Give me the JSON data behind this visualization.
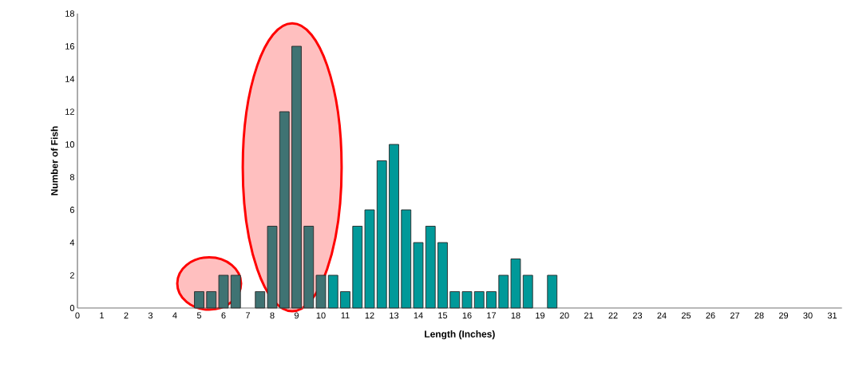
{
  "chart_data": {
    "type": "bar",
    "xlabel": "Length (Inches)",
    "ylabel": "Number of Fish",
    "x": [
      5,
      5.5,
      6,
      6.5,
      7.5,
      8,
      8.5,
      9,
      9.5,
      10,
      10.5,
      11,
      11.5,
      12,
      12.5,
      13,
      13.5,
      14,
      14.5,
      15,
      15.5,
      16,
      16.5,
      17,
      17.5,
      18,
      18.5,
      19.5
    ],
    "values": [
      1,
      1,
      2,
      2,
      1,
      5,
      12,
      16,
      5,
      2,
      2,
      1,
      5,
      6,
      9,
      10,
      6,
      4,
      5,
      4,
      1,
      1,
      1,
      1,
      2,
      3,
      2,
      2
    ],
    "colors": [
      "#3f7373",
      "#3f7373",
      "#3f7373",
      "#3f7373",
      "#3f7373",
      "#3f7373",
      "#3f7373",
      "#3f7373",
      "#3f7373",
      "#3f7373",
      "#009999",
      "#009999",
      "#009999",
      "#009999",
      "#009999",
      "#009999",
      "#009999",
      "#009999",
      "#009999",
      "#009999",
      "#009999",
      "#009999",
      "#009999",
      "#009999",
      "#009999",
      "#009999",
      "#009999",
      "#009999"
    ],
    "xlim": [
      0,
      31.4
    ],
    "ylim": [
      0,
      18
    ],
    "xticks": [
      0,
      1,
      2,
      3,
      4,
      5,
      6,
      7,
      8,
      9,
      10,
      11,
      12,
      13,
      14,
      15,
      16,
      17,
      18,
      19,
      20,
      21,
      22,
      23,
      24,
      25,
      26,
      27,
      28,
      29,
      30,
      31
    ],
    "yticks": [
      0,
      2,
      4,
      6,
      8,
      10,
      12,
      14,
      16,
      18
    ]
  }
}
